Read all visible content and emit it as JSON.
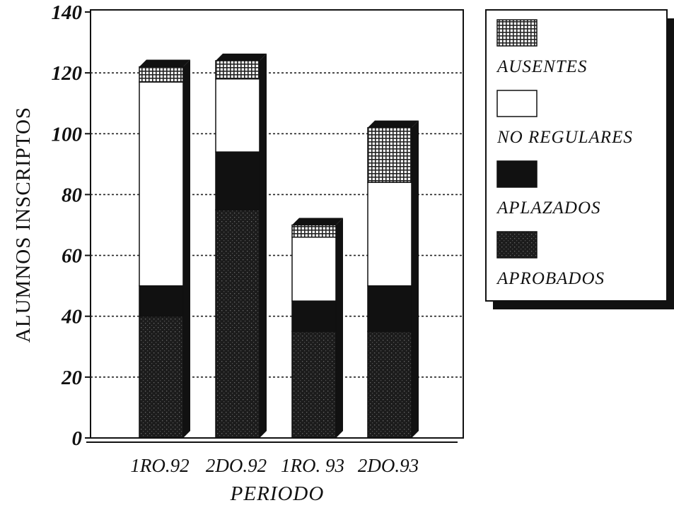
{
  "chart_data": {
    "type": "bar",
    "stacked": true,
    "categories": [
      "1RO.92",
      "2DO.92",
      "1RO. 93",
      "2DO.93"
    ],
    "series": [
      {
        "name": "APROBADOS",
        "values": [
          40,
          75,
          35,
          35
        ],
        "pattern": "dark-dotted",
        "color": "#1c1c1c"
      },
      {
        "name": "APLAZADOS",
        "values": [
          10,
          19,
          10,
          15
        ],
        "pattern": "solid-dark",
        "color": "#111111"
      },
      {
        "name": "NO REGULARES",
        "values": [
          67,
          24,
          21,
          34
        ],
        "pattern": "white",
        "color": "#ffffff"
      },
      {
        "name": "AUSENTES",
        "values": [
          5,
          6,
          4,
          18
        ],
        "pattern": "crosshatch",
        "color": "#333333"
      }
    ],
    "xlabel": "PERIODO",
    "ylabel": "ALUMNOS INSCRIPTOS",
    "ylim": [
      0,
      140
    ],
    "yticks": [
      "0",
      "20",
      "40",
      "60",
      "80",
      "100",
      "120",
      "140"
    ],
    "grid": true,
    "legend": "right",
    "legend_order": [
      "AUSENTES",
      "NO REGULARES",
      "APLAZADOS",
      "APROBADOS"
    ]
  }
}
